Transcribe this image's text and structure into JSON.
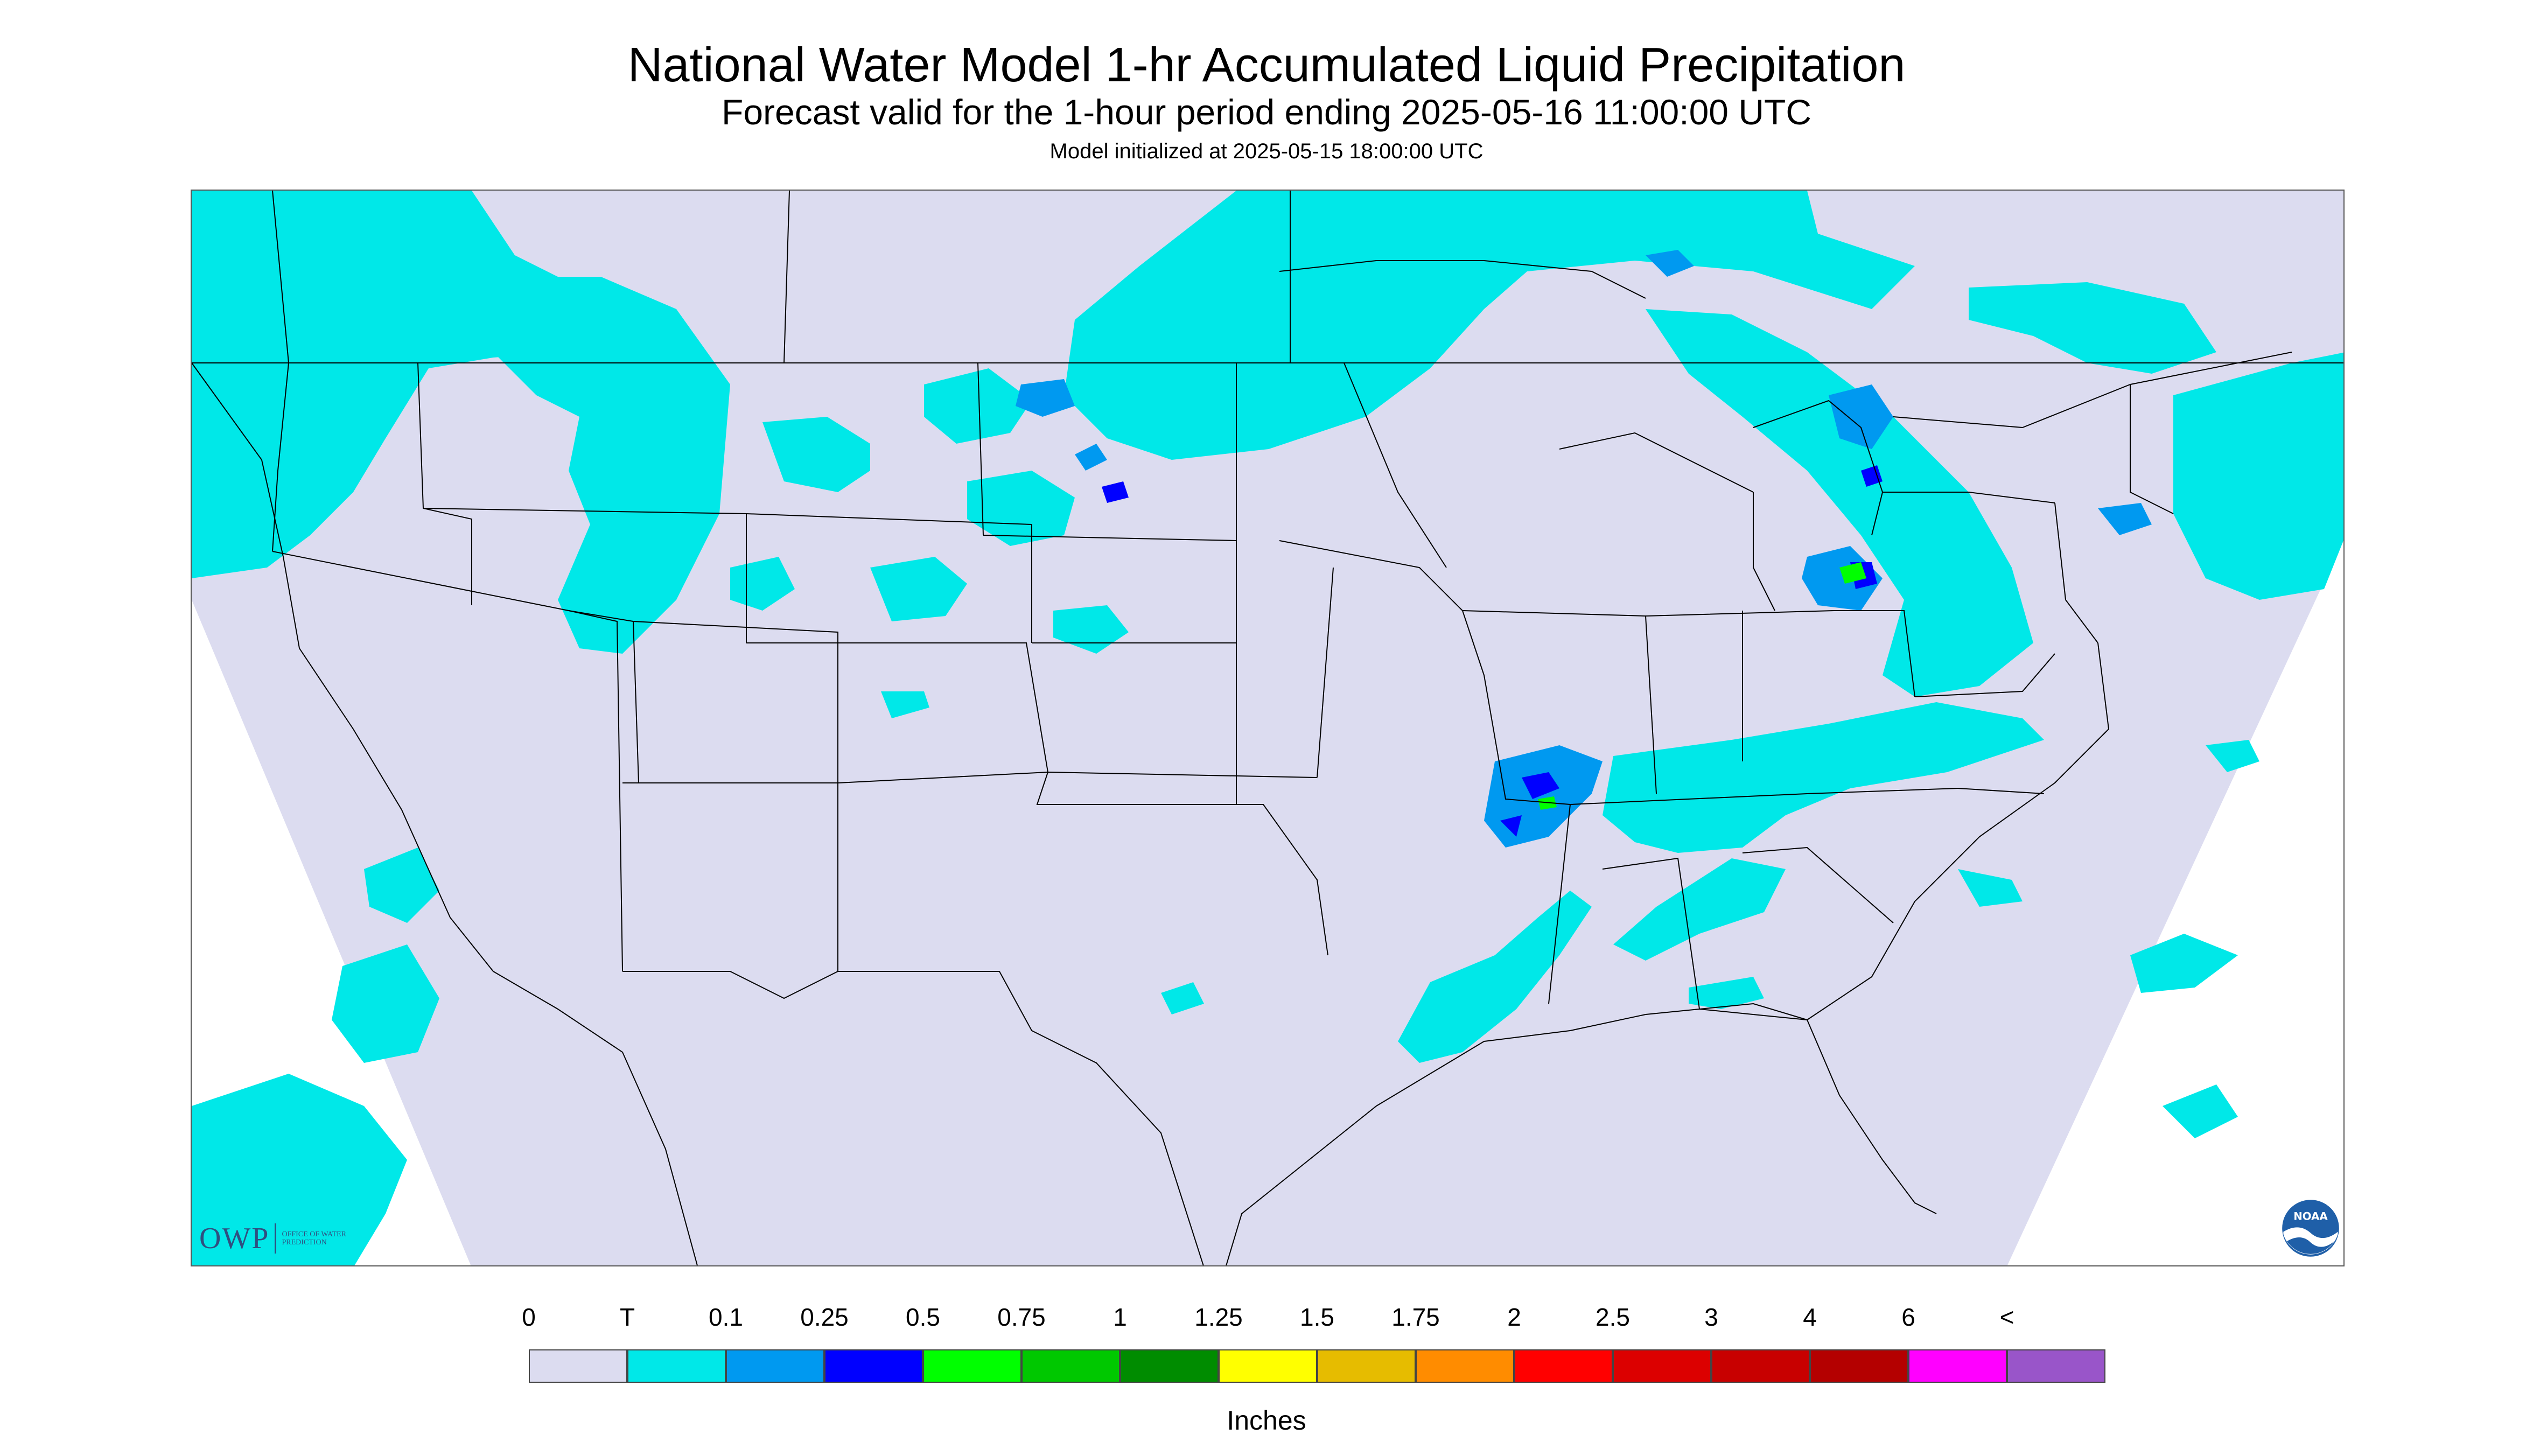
{
  "header": {
    "title": "National Water Model 1-hr Accumulated Liquid Precipitation",
    "subtitle": "Forecast valid for the 1-hour period ending 2025-05-16 11:00:00 UTC",
    "init": "Model initialized at 2025-05-15 18:00:00 UTC"
  },
  "map": {
    "background_color": "#dcdcf0",
    "boundary_color": "#000000",
    "trace_color": "#00e8e8",
    "band_0_1_color": "#0099f0",
    "band_0_25_color": "#0000ff",
    "band_0_5_color": "#00ff00"
  },
  "logos": {
    "owp_text": "OWP",
    "owp_sub": "OFFICE OF WATER PREDICTION",
    "noaa_text": "NOAA"
  },
  "legend": {
    "labels": [
      "0",
      "T",
      "0.1",
      "0.25",
      "0.5",
      "0.75",
      "1",
      "1.25",
      "1.5",
      "1.75",
      "2",
      "2.5",
      "3",
      "4",
      "6",
      "<"
    ],
    "colors": [
      "#dcdcf0",
      "#00e8e8",
      "#0099f0",
      "#0000ff",
      "#00ff00",
      "#00c800",
      "#008c00",
      "#ffff00",
      "#e6bc00",
      "#ff8c00",
      "#ff0000",
      "#dc0000",
      "#c80000",
      "#b40000",
      "#ff00ff",
      "#9955c9"
    ],
    "unit": "Inches"
  }
}
